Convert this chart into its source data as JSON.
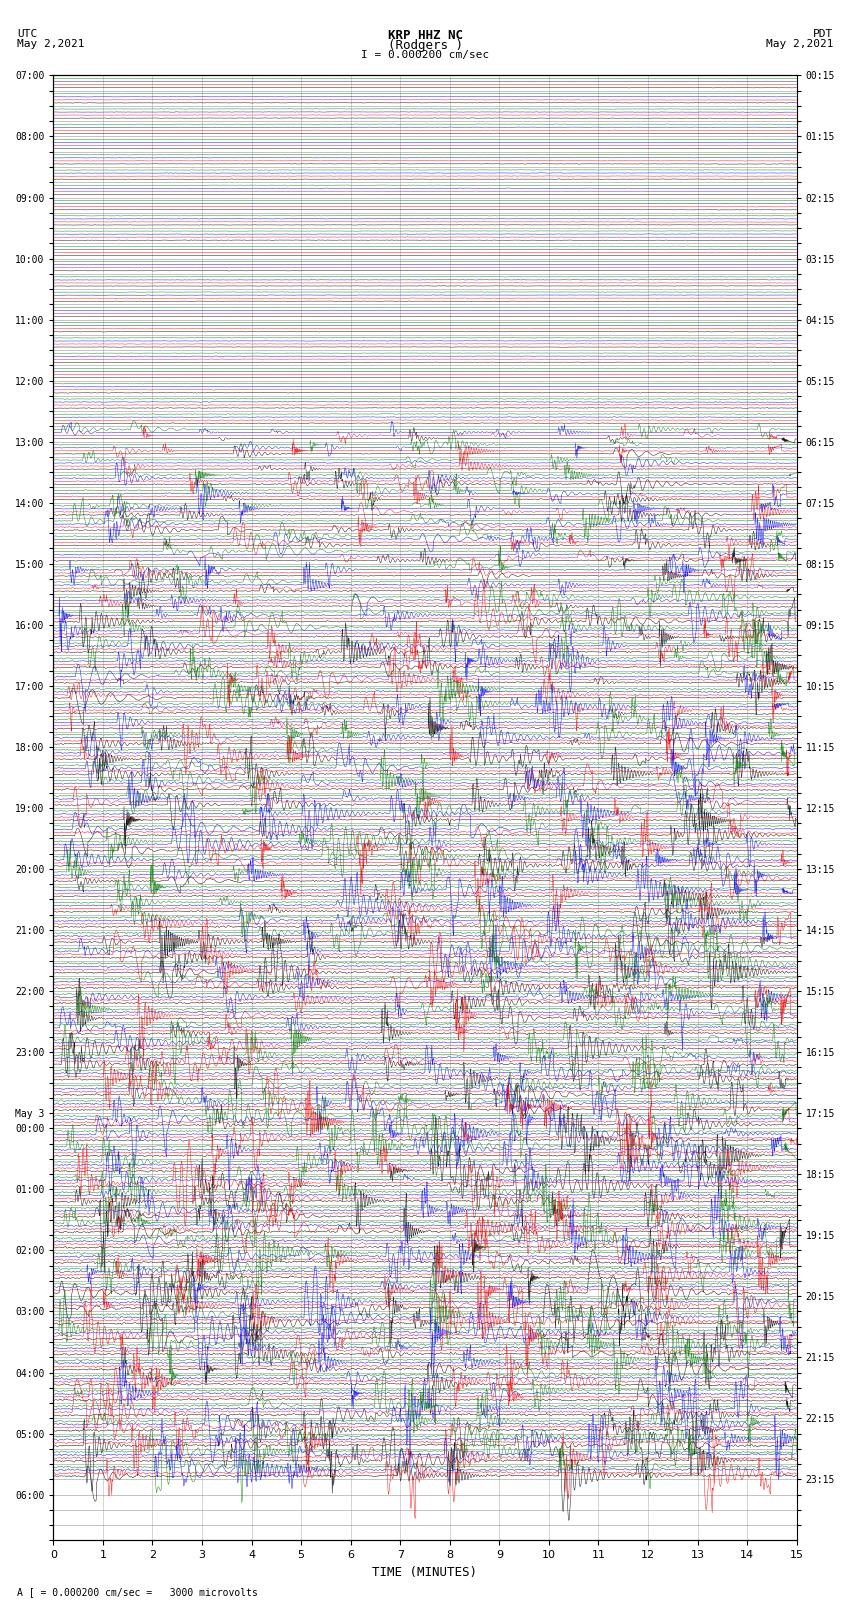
{
  "title_line1": "KRP HHZ NC",
  "title_line2": "(Rodgers )",
  "scale_label": "I = 0.000200 cm/sec",
  "utc_label": "UTC\nMay 2,2021",
  "pdt_label": "PDT\nMay 2,2021",
  "bottom_label": "A [ = 0.000200 cm/sec =   3000 microvolts",
  "xlabel": "TIME (MINUTES)",
  "left_yticks_labels": [
    "07:00",
    "",
    "",
    "",
    "08:00",
    "",
    "",
    "",
    "09:00",
    "",
    "",
    "",
    "10:00",
    "",
    "",
    "",
    "11:00",
    "",
    "",
    "",
    "12:00",
    "",
    "",
    "",
    "13:00",
    "",
    "",
    "",
    "14:00",
    "",
    "",
    "",
    "15:00",
    "",
    "",
    "",
    "16:00",
    "",
    "",
    "",
    "17:00",
    "",
    "",
    "",
    "18:00",
    "",
    "",
    "",
    "19:00",
    "",
    "",
    "",
    "20:00",
    "",
    "",
    "",
    "21:00",
    "",
    "",
    "",
    "22:00",
    "",
    "",
    "",
    "23:00",
    "",
    "",
    "",
    "May 3",
    "00:00",
    "",
    "",
    "",
    "01:00",
    "",
    "",
    "",
    "02:00",
    "",
    "",
    "",
    "03:00",
    "",
    "",
    "",
    "04:00",
    "",
    "",
    "",
    "05:00",
    "",
    "",
    "",
    "06:00",
    "",
    "",
    ""
  ],
  "right_yticks_labels": [
    "00:15",
    "",
    "",
    "",
    "01:15",
    "",
    "",
    "",
    "02:15",
    "",
    "",
    "",
    "03:15",
    "",
    "",
    "",
    "04:15",
    "",
    "",
    "",
    "05:15",
    "",
    "",
    "",
    "06:15",
    "",
    "",
    "",
    "07:15",
    "",
    "",
    "",
    "08:15",
    "",
    "",
    "",
    "09:15",
    "",
    "",
    "",
    "10:15",
    "",
    "",
    "",
    "11:15",
    "",
    "",
    "",
    "12:15",
    "",
    "",
    "",
    "13:15",
    "",
    "",
    "",
    "14:15",
    "",
    "",
    "",
    "15:15",
    "",
    "",
    "",
    "16:15",
    "",
    "",
    "",
    "17:15",
    "",
    "",
    "",
    "18:15",
    "",
    "",
    "",
    "19:15",
    "",
    "",
    "",
    "20:15",
    "",
    "",
    "",
    "21:15",
    "",
    "",
    "",
    "22:15",
    "",
    "",
    "",
    "23:15",
    "",
    "",
    ""
  ],
  "xlim": [
    0,
    15
  ],
  "num_rows": 92,
  "bg_color": "#ffffff",
  "grid_color": "#888888",
  "seismo_colors": [
    "#000000",
    "#ff0000",
    "#0000ff",
    "#008000"
  ],
  "fig_width": 8.5,
  "fig_height": 16.13,
  "dpi": 100,
  "spike_x_positions": {
    "black": [
      0.72,
      0.78,
      2.18,
      2.22,
      3.38,
      3.42,
      5.52,
      5.56,
      7.05,
      7.09,
      8.58,
      8.62,
      9.65,
      9.69,
      10.72,
      10.76,
      11.75,
      11.79,
      12.82,
      12.86,
      13.88,
      13.92
    ],
    "green": [
      1.05,
      1.08,
      1.11,
      3.52,
      3.55,
      3.58,
      3.61,
      3.64,
      5.22,
      5.25,
      5.28,
      5.31,
      5.34,
      5.37,
      5.4,
      7.5,
      7.53,
      7.56,
      8.42,
      8.45,
      14.65,
      14.68
    ],
    "blue": [
      0.75,
      0.79,
      2.62,
      2.65,
      5.52,
      5.56,
      7.85,
      7.88,
      8.05,
      8.08,
      10.15,
      10.18,
      11.52,
      11.55,
      14.8,
      14.83
    ],
    "red": [
      0.0,
      2.5,
      5.0,
      7.5,
      10.0,
      12.5
    ]
  }
}
